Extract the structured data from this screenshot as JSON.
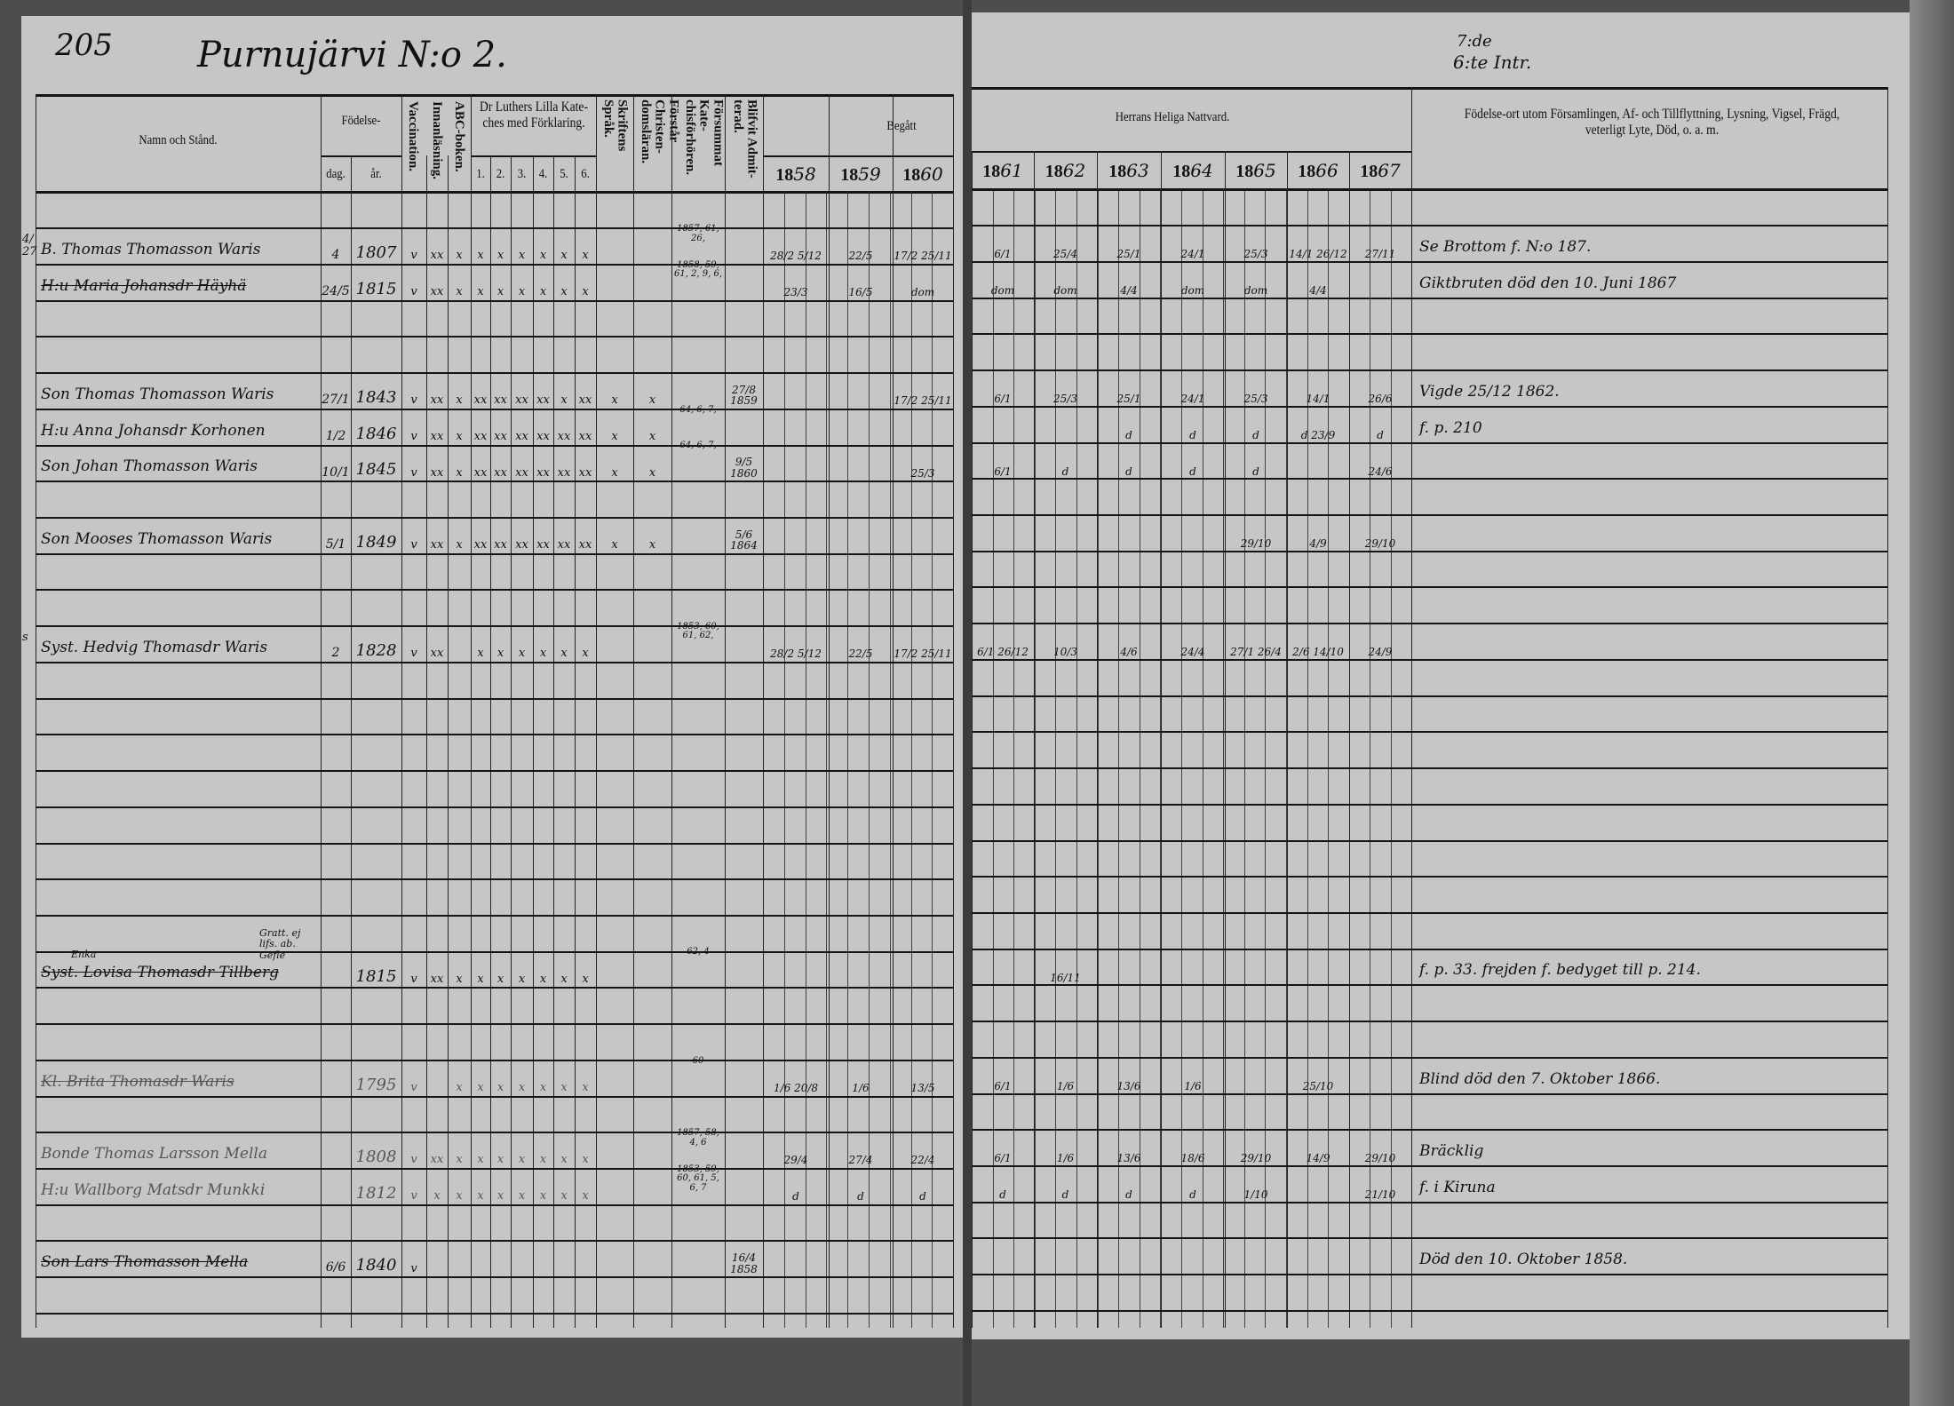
{
  "header": {
    "page_number": "205",
    "village": "Purnujärvi N:o 2.",
    "right_note_top": "7:de",
    "right_note_bottom": "6:te Intr."
  },
  "columns": {
    "name": "Namn och Stånd.",
    "birth": "Födelse-",
    "birth_day": "dag.",
    "birth_year": "år.",
    "vaccination": "Vaccination.",
    "reading": "Innanläsning.",
    "abc": "ABC-boken.",
    "catechism": "Dr Luthers Lilla Kate-ches med Förklaring.",
    "catechism_parts": [
      "1.",
      "2.",
      "3.",
      "4.",
      "5.",
      "6."
    ],
    "scripture": "Skriftens Språk.",
    "doctrine": "Förstår Christen-domsläran.",
    "missed": "Försummat Kate-chisförhören.",
    "admitted": "Blifvit Admit-terad.",
    "begatt": "Begått",
    "begatt_years": [
      {
        "printed": "18",
        "written": "58"
      },
      {
        "printed": "18",
        "written": "59"
      },
      {
        "printed": "18",
        "written": "60"
      }
    ],
    "communion": "Herrans Heliga Nattvard.",
    "communion_years": [
      {
        "printed": "18",
        "written": "61"
      },
      {
        "printed": "18",
        "written": "62"
      },
      {
        "printed": "18",
        "written": "63"
      },
      {
        "printed": "18",
        "written": "64"
      },
      {
        "printed": "18",
        "written": "65"
      },
      {
        "printed": "18",
        "written": "66"
      },
      {
        "printed": "18",
        "written": "67"
      }
    ],
    "notes": "Födelse-ort utom Församlingen, Af- och Tillflyttning, Lysning, Vigsel, Frägd, veterligt Lyte, Död, o. a. m."
  },
  "rows": [
    {
      "margin": "4/27",
      "name": "B. Thomas Thomasson Waris",
      "dag": "4",
      "ar": "1807",
      "vacc": "v",
      "marks": [
        "xx",
        "x",
        "x",
        "x",
        "x",
        "x",
        "x",
        "x"
      ],
      "skrift": "",
      "christ": "",
      "missed": "1857, 61, 26,",
      "admitted": "",
      "begatt": [
        "28/2 5/12",
        "22/5",
        "17/2 25/11"
      ],
      "nattvard": [
        "6/1",
        "25/4",
        "25/1",
        "24/1",
        "25/3",
        "14/1 26/12",
        "27/11"
      ],
      "note": "Se Brottom f. N:o 187."
    },
    {
      "name": "H:u Maria Johansdr Häyhä",
      "struck": true,
      "dag": "24/5",
      "ar": "1815",
      "vacc": "v",
      "marks": [
        "xx",
        "x",
        "x",
        "x",
        "x",
        "x",
        "x",
        "x"
      ],
      "missed": "1858, 59, 61, 2, 9, 6,",
      "begatt": [
        "23/3",
        "16/5",
        "dom"
      ],
      "nattvard": [
        "dom",
        "dom",
        "4/4",
        "dom",
        "dom",
        "4/4",
        ""
      ],
      "note": "Giktbruten död den 10. Juni 1867"
    },
    {},
    {},
    {
      "name": "Son Thomas Thomasson Waris",
      "dag": "27/1",
      "ar": "1843",
      "vacc": "v",
      "marks": [
        "xx",
        "x",
        "xx",
        "xx",
        "xx",
        "xx",
        "x",
        "xx"
      ],
      "skrift": "x",
      "christ": "x",
      "admitted": "27/8 1859",
      "begatt": [
        "",
        "",
        "17/2 25/11"
      ],
      "nattvard": [
        "6/1",
        "25/3",
        "25/1",
        "24/1",
        "25/3",
        "14/1",
        "26/6"
      ],
      "note": "Vigde 25/12 1862."
    },
    {
      "name": "H:u Anna Johansdr Korhonen",
      "dag": "1/2",
      "ar": "1846",
      "vacc": "v",
      "marks": [
        "xx",
        "x",
        "xx",
        "xx",
        "xx",
        "xx",
        "xx",
        "xx"
      ],
      "skrift": "x",
      "christ": "x",
      "missed": "64, 6, 7,",
      "nattvard": [
        "",
        "",
        "d",
        "d",
        "d",
        "d 23/9",
        "d"
      ],
      "note": "f. p. 210"
    },
    {
      "name": "Son Johan Thomasson Waris",
      "dag": "10/1",
      "ar": "1845",
      "vacc": "v",
      "marks": [
        "xx",
        "x",
        "xx",
        "xx",
        "xx",
        "xx",
        "xx",
        "xx"
      ],
      "skrift": "x",
      "christ": "x",
      "missed": "64, 6, 7,",
      "admitted": "9/5 1860",
      "begatt": [
        "",
        "",
        "25/3"
      ],
      "nattvard": [
        "6/1",
        "d",
        "d",
        "d",
        "d",
        "",
        "24/6"
      ]
    },
    {},
    {
      "name": "Son Mooses Thomasson Waris",
      "dag": "5/1",
      "ar": "1849",
      "vacc": "v",
      "marks": [
        "xx",
        "x",
        "xx",
        "xx",
        "xx",
        "xx",
        "xx",
        "xx"
      ],
      "skrift": "x",
      "christ": "x",
      "admitted": "5/6 1864",
      "nattvard": [
        "",
        "",
        "",
        "",
        "29/10",
        "4/9",
        "29/10"
      ]
    },
    {},
    {},
    {
      "margin": "s",
      "name": "Syst. Hedvig Thomasdr Waris",
      "dag": "2",
      "ar": "1828",
      "vacc": "v",
      "marks": [
        "xx",
        "",
        "x",
        "x",
        "x",
        "x",
        "x",
        "x"
      ],
      "missed": "1853, 60, 61, 62,",
      "begatt": [
        "28/2 5/12",
        "22/5",
        "17/2 25/11"
      ],
      "nattvard": [
        "6/1 26/12",
        "10/3",
        "4/6",
        "24/4",
        "27/1 26/4",
        "2/6 14/10",
        "24/9"
      ]
    },
    {},
    {},
    {},
    {},
    {},
    {},
    {},
    {},
    {
      "name": "Syst. Lovisa Thomasdr Tillberg",
      "sup": "Enka",
      "aside": "Gratt. ej lifs. ab. Gefle",
      "struck": true,
      "ar": "1815",
      "vacc": "v",
      "marks": [
        "xx",
        "x",
        "x",
        "x",
        "x",
        "x",
        "x",
        "x"
      ],
      "missed": "62, 4",
      "nattvard": [
        "",
        "16/11",
        "",
        "",
        "",
        "",
        ""
      ],
      "note": "f. p. 33. frejden f. bedyget till p. 214."
    },
    {},
    {},
    {
      "name": "Kl. Brita Thomasdr Waris",
      "struck": true,
      "faded": true,
      "ar": "1795",
      "vacc": "v",
      "marks": [
        "",
        "x",
        "x",
        "x",
        "x",
        "x",
        "x",
        "x"
      ],
      "missed": "60",
      "begatt": [
        "1/6 20/8",
        "1/6",
        "13/5"
      ],
      "nattvard": [
        "6/1",
        "1/6",
        "13/6",
        "1/6",
        "",
        "25/10",
        ""
      ],
      "note": "Blind död den 7. Oktober 1866."
    },
    {},
    {
      "name": "Bonde Thomas Larsson Mella",
      "faded": true,
      "ar": "1808",
      "vacc": "v",
      "marks": [
        "xx",
        "x",
        "x",
        "x",
        "x",
        "x",
        "x",
        "x"
      ],
      "missed": "1857, 58, 4, 6",
      "begatt": [
        "29/4",
        "27/4",
        "22/4"
      ],
      "nattvard": [
        "6/1",
        "1/6",
        "13/6",
        "18/6",
        "29/10",
        "14/9",
        "29/10"
      ],
      "note": "Bräcklig"
    },
    {
      "name": "H:u Wallborg Matsdr Munkki",
      "faded": true,
      "ar": "1812",
      "vacc": "v",
      "marks": [
        "x",
        "x",
        "x",
        "x",
        "x",
        "x",
        "x",
        "x"
      ],
      "missed": "1853, 59, 60, 61, 5, 6, 7",
      "begatt": [
        "d",
        "d",
        "d"
      ],
      "nattvard": [
        "d",
        "d",
        "d",
        "d",
        "1/10",
        "",
        "21/10"
      ],
      "note": "f. i Kiruna"
    },
    {},
    {
      "name": "Son Lars Thomasson Mella",
      "struck": true,
      "dag": "6/6",
      "ar": "1840",
      "vacc": "v",
      "admitted": "16/4 1858",
      "note": "Död den 10. Oktober 1858."
    }
  ]
}
